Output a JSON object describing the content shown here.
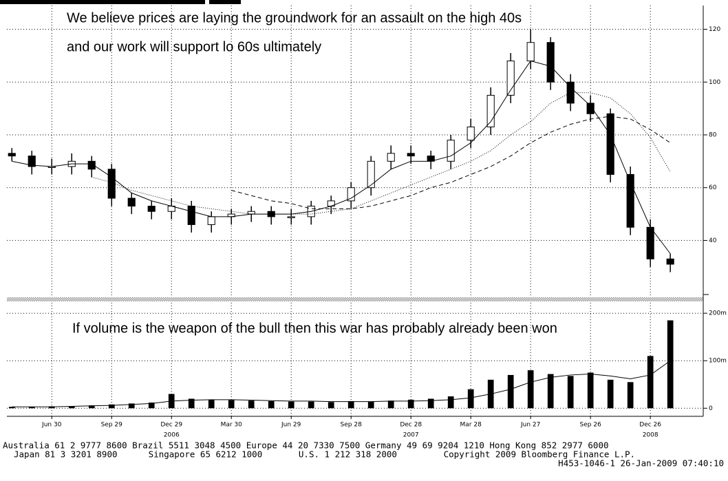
{
  "chart_data": {
    "type": "candlestick",
    "annotations": [
      "We believe prices are laying the groundwork for an assault on the high 40s",
      "and our work will support lo 60s ultimately"
    ],
    "x": [
      -2,
      -1,
      0,
      1,
      2,
      3,
      4,
      5,
      6,
      7,
      8,
      9,
      10,
      11,
      12,
      13,
      14,
      15,
      16,
      17,
      18,
      19,
      20,
      21,
      22,
      23,
      24,
      25,
      26,
      27,
      28,
      29,
      30,
      31
    ],
    "open": [
      73,
      72,
      68,
      68,
      70,
      67,
      56,
      53,
      51,
      53,
      46,
      49,
      50,
      51,
      49,
      49,
      53,
      55,
      60,
      70,
      73,
      72,
      70,
      78,
      83,
      95,
      108,
      115,
      100,
      92,
      88,
      65,
      45,
      33
    ],
    "high": [
      75,
      74,
      71,
      73,
      72,
      69,
      58,
      55,
      56,
      55,
      51,
      52,
      53,
      53,
      52,
      55,
      57,
      62,
      72,
      76,
      76,
      74,
      80,
      86,
      98,
      111,
      120,
      117,
      103,
      95,
      90,
      68,
      48,
      35
    ],
    "low": [
      70,
      65,
      65,
      65,
      64,
      53,
      50,
      48,
      48,
      43,
      43,
      46,
      47,
      46,
      46,
      46,
      50,
      52,
      57,
      67,
      69,
      67,
      67,
      75,
      80,
      92,
      105,
      97,
      89,
      85,
      62,
      42,
      30,
      28
    ],
    "close": [
      72,
      68,
      68,
      70,
      67,
      56,
      53,
      51,
      53,
      46,
      49,
      50,
      51,
      49,
      49,
      53,
      55,
      60,
      70,
      73,
      72,
      70,
      78,
      83,
      95,
      108,
      115,
      100,
      92,
      88,
      65,
      45,
      33,
      31
    ],
    "moving_averages": [
      {
        "style": "solid",
        "values": [
          70,
          68.5,
          68,
          69,
          69,
          64,
          58,
          55,
          53,
          51,
          49,
          49,
          50,
          50,
          50,
          51,
          53,
          56,
          61,
          67,
          70,
          70,
          72,
          77,
          85,
          97,
          108,
          106,
          98,
          91,
          80,
          62,
          45,
          35
        ]
      },
      {
        "style": "dotted",
        "values": [
          null,
          null,
          null,
          null,
          64,
          62,
          59,
          57,
          55,
          53,
          52,
          51,
          50,
          50,
          50,
          50,
          51,
          52,
          55,
          58,
          61,
          64,
          67,
          70,
          74,
          80,
          85,
          92,
          96,
          96,
          94,
          88,
          79,
          66
        ]
      },
      {
        "style": "dashed",
        "values": [
          null,
          null,
          null,
          null,
          null,
          null,
          null,
          null,
          null,
          null,
          null,
          59,
          57,
          55,
          54,
          52,
          52,
          52,
          53,
          55,
          57,
          60,
          62,
          65,
          68,
          72,
          77,
          81,
          84,
          86,
          87,
          86,
          82,
          77
        ]
      }
    ],
    "color": "#000000",
    "xlim": [
      -2.25,
      32.65
    ],
    "xticks": [
      {
        "value": 0,
        "label": "Jun 30"
      },
      {
        "value": 3,
        "label": "Sep 29"
      },
      {
        "value": 6,
        "label": "Dec 29"
      },
      {
        "value": 9,
        "label": "Mar 30"
      },
      {
        "value": 12,
        "label": "Jun 29"
      },
      {
        "value": 15,
        "label": "Sep 28"
      },
      {
        "value": 18,
        "label": "Dec 28"
      },
      {
        "value": 21,
        "label": "Mar 28"
      },
      {
        "value": 24,
        "label": "Jun 27"
      },
      {
        "value": 27,
        "label": "Sep 26"
      },
      {
        "value": 30,
        "label": "Dec 26"
      }
    ],
    "x_year_labels": [
      {
        "value": 6,
        "label": "2006"
      },
      {
        "value": 18,
        "label": "2007"
      },
      {
        "value": 30,
        "label": "2008"
      }
    ],
    "ylim": [
      19,
      129
    ],
    "yticks": [
      40,
      60,
      80,
      100,
      120
    ],
    "grid": true,
    "volume": {
      "type": "bar",
      "annotation": "If volume is the weapon of the bull then this war has probably already been won",
      "values": [
        3,
        3,
        4,
        4,
        6,
        8,
        10,
        12,
        30,
        20,
        18,
        17,
        16,
        15,
        14,
        14,
        13,
        15,
        14,
        16,
        18,
        20,
        25,
        40,
        60,
        70,
        80,
        72,
        68,
        75,
        60,
        55,
        110,
        185
      ],
      "average": [
        3,
        3,
        3,
        4,
        5,
        6,
        8,
        10,
        15,
        17,
        18,
        18,
        17,
        16,
        15,
        15,
        14,
        14,
        14,
        15,
        15,
        16,
        18,
        22,
        30,
        40,
        55,
        65,
        70,
        72,
        68,
        62,
        70,
        100
      ],
      "ylim": [
        -17,
        222
      ],
      "yticks": [
        0,
        {
          "value": 100,
          "label": "100m"
        },
        {
          "value": 200,
          "label": "200m"
        }
      ]
    }
  },
  "footer": [
    "Australia 61 2 9777 8600 Brazil 5511 3048 4500 Europe 44 20 7330 7500 Germany 49 69 9204 1210 Hong Kong 852 2977 6000",
    "Japan 81 3 3201 8900      Singapore 65 6212 1000       U.S. 1 212 318 2000         Copyright 2009 Bloomberg Finance L.P.",
    "H453-1046-1 26-Jan-2009 07:40:10"
  ]
}
